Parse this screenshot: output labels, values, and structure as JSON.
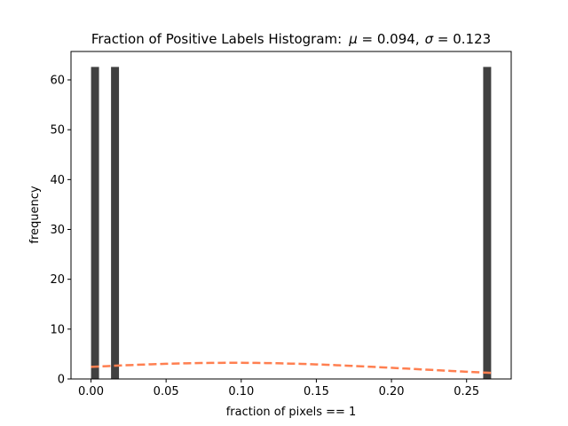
{
  "chart_data": {
    "type": "bar",
    "title": "Fraction of Positive Labels Histogram$:\\ \\mu=0.094,\\ \\sigma=0.123$",
    "title_display": {
      "prefix": "Fraction of Positive Labels Histogram",
      "colon": ":",
      "mu_symbol": "μ",
      "equals": " = ",
      "mu_value": "0.094,",
      "sigma_symbol": "σ",
      "sigma_value": "0.123"
    },
    "xlabel": "fraction of pixels == 1",
    "ylabel": "frequency",
    "xlim": [
      -0.0133,
      0.2797
    ],
    "ylim": [
      0,
      65.7
    ],
    "xticks": [
      0.0,
      0.05,
      0.1,
      0.15,
      0.2,
      0.25
    ],
    "xtick_labels": [
      "0.00",
      "0.05",
      "0.10",
      "0.15",
      "0.20",
      "0.25"
    ],
    "yticks": [
      0,
      10,
      20,
      30,
      40,
      50,
      60
    ],
    "ytick_labels": [
      "0",
      "10",
      "20",
      "30",
      "40",
      "50",
      "60"
    ],
    "bar_width": 0.0053,
    "bars": [
      {
        "x": 0.0027,
        "value": 62.6
      },
      {
        "x": 0.016,
        "value": 62.6
      },
      {
        "x": 0.2637,
        "value": 62.6
      }
    ],
    "bar_color": "#404040",
    "normal_curve": {
      "mu": 0.094,
      "sigma": 0.123,
      "x_range": [
        0.0,
        0.2664
      ],
      "color": "#ff7f50",
      "style": "dashed"
    },
    "grid": false,
    "legend": "none"
  }
}
